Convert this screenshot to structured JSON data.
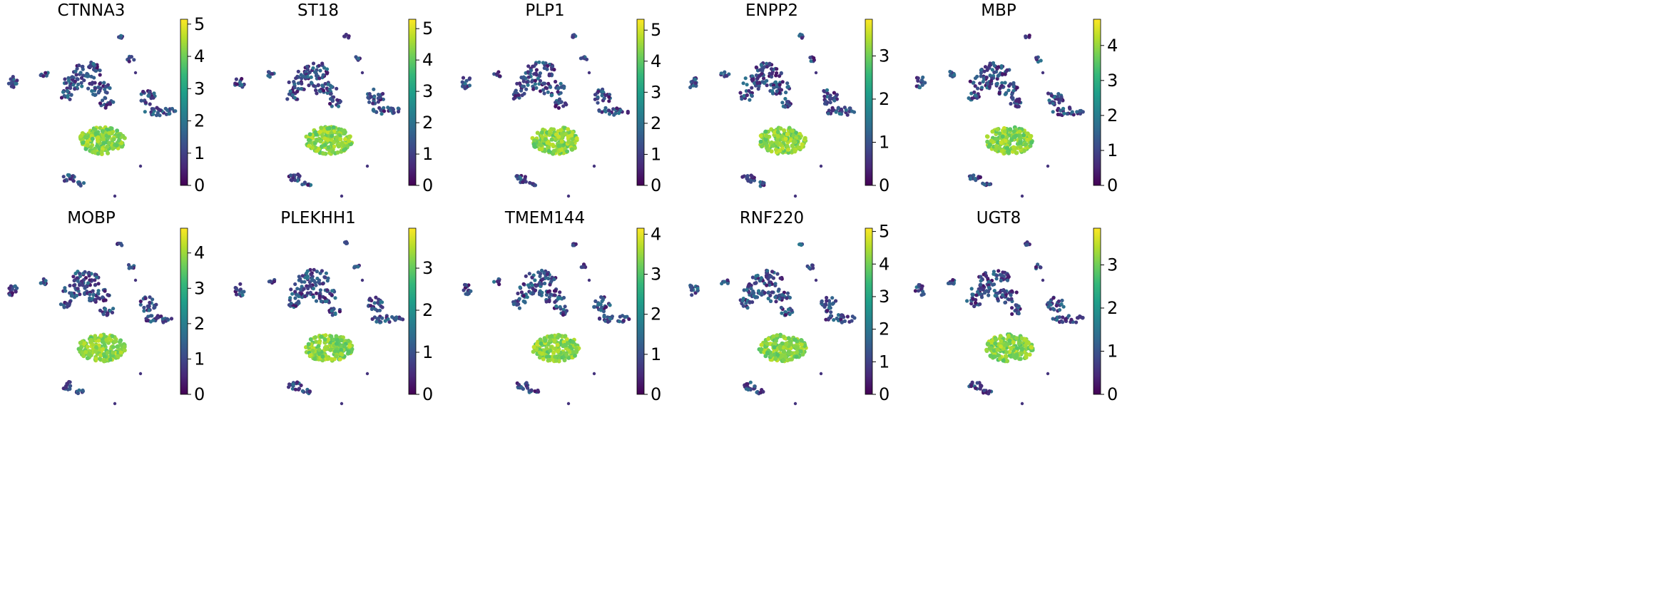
{
  "figure": {
    "type": "umap-feature-grid",
    "colormap": "viridis",
    "colormap_stops": [
      "#440154",
      "#482878",
      "#3e4989",
      "#31688e",
      "#26828e",
      "#1f9e89",
      "#35b779",
      "#6ece58",
      "#b5de2b",
      "#fde725"
    ]
  },
  "chart_data": [
    {
      "type": "scatter",
      "title": "CTNNA3",
      "colorbar_range": [
        0,
        5.15
      ],
      "colorbar_ticks": [
        0,
        1,
        2,
        3,
        4,
        5
      ]
    },
    {
      "type": "scatter",
      "title": "ST18",
      "colorbar_range": [
        0,
        5.3
      ],
      "colorbar_ticks": [
        0,
        1,
        2,
        3,
        4,
        5
      ]
    },
    {
      "type": "scatter",
      "title": "PLP1",
      "colorbar_range": [
        0,
        5.35
      ],
      "colorbar_ticks": [
        0,
        1,
        2,
        3,
        4,
        5
      ]
    },
    {
      "type": "scatter",
      "title": "ENPP2",
      "colorbar_range": [
        0,
        3.85
      ],
      "colorbar_ticks": [
        0,
        1,
        2,
        3
      ]
    },
    {
      "type": "scatter",
      "title": "MBP",
      "colorbar_range": [
        0,
        4.75
      ],
      "colorbar_ticks": [
        0,
        1,
        2,
        3,
        4
      ]
    },
    {
      "type": "scatter",
      "title": "MOBP",
      "colorbar_range": [
        0,
        4.7
      ],
      "colorbar_ticks": [
        0,
        1,
        2,
        3,
        4
      ]
    },
    {
      "type": "scatter",
      "title": "PLEKHH1",
      "colorbar_range": [
        0,
        3.95
      ],
      "colorbar_ticks": [
        0,
        1,
        2,
        3
      ]
    },
    {
      "type": "scatter",
      "title": "TMEM144",
      "colorbar_range": [
        0,
        4.15
      ],
      "colorbar_ticks": [
        0,
        1,
        2,
        3,
        4
      ]
    },
    {
      "type": "scatter",
      "title": "RNF220",
      "colorbar_range": [
        0,
        5.1
      ],
      "colorbar_ticks": [
        0,
        1,
        2,
        3,
        4,
        5
      ]
    },
    {
      "type": "scatter",
      "title": "UGT8",
      "colorbar_range": [
        0,
        3.85
      ],
      "colorbar_ticks": [
        0,
        1,
        2,
        3
      ]
    }
  ]
}
